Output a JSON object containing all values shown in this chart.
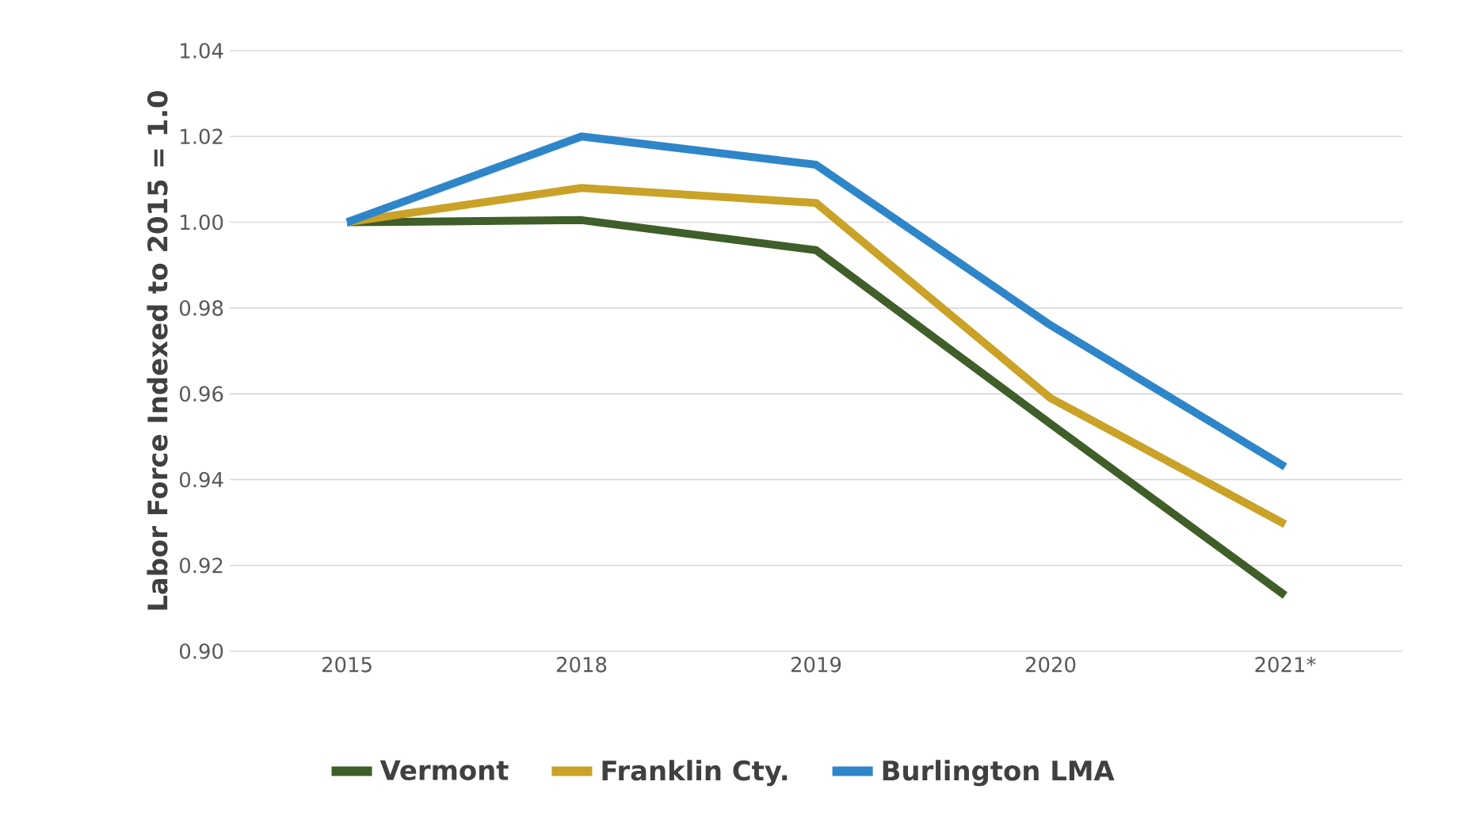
{
  "chart_data": {
    "type": "line",
    "ylabel": "Labor Force Indexed to 2015 = 1.0",
    "categories": [
      "2015",
      "2018",
      "2019",
      "2020",
      "2021*"
    ],
    "series": [
      {
        "name": "Vermont",
        "color": "#3f5e29",
        "values": [
          1.0,
          1.0005,
          0.9935,
          0.953,
          0.913
        ]
      },
      {
        "name": "Franklin Cty.",
        "color": "#c9a227",
        "values": [
          1.0,
          1.008,
          1.0045,
          0.959,
          0.9296
        ]
      },
      {
        "name": "Burlington LMA",
        "color": "#2e86c9",
        "values": [
          1.0,
          1.02,
          1.0134,
          0.976,
          0.943
        ]
      }
    ],
    "ylim": [
      0.9,
      1.04
    ],
    "yticks": [
      {
        "value": 0.9,
        "label": "0.90"
      },
      {
        "value": 0.92,
        "label": "0.92"
      },
      {
        "value": 0.94,
        "label": "0.94"
      },
      {
        "value": 0.96,
        "label": "0.96"
      },
      {
        "value": 0.98,
        "label": "0.98"
      },
      {
        "value": 1.0,
        "label": "1.00"
      },
      {
        "value": 1.02,
        "label": "1.02"
      },
      {
        "value": 1.04,
        "label": "1.04"
      }
    ],
    "grid": "y",
    "legend": "bottom",
    "marker": "none",
    "line_style": "solid"
  }
}
